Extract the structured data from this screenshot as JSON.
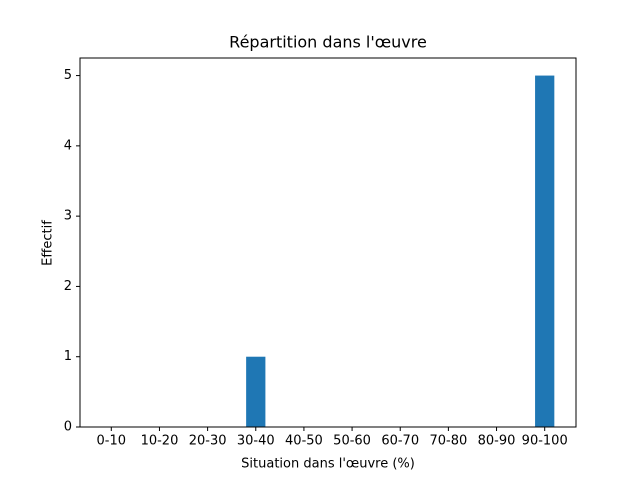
{
  "chart_data": {
    "type": "bar",
    "title": "Répartition dans l'œuvre",
    "x_label": "Situation dans l'œuvre (%)",
    "y_label": "Effectif",
    "categories": [
      "0-10",
      "10-20",
      "20-30",
      "30-40",
      "40-50",
      "50-60",
      "60-70",
      "70-80",
      "80-90",
      "90-100"
    ],
    "values": [
      0,
      0,
      0,
      1,
      0,
      0,
      0,
      0,
      0,
      5
    ],
    "color": "#1f77b4",
    "ylim": [
      0,
      5.25
    ],
    "yticks": [
      0,
      1,
      2,
      3,
      4,
      5
    ],
    "grid": false
  }
}
